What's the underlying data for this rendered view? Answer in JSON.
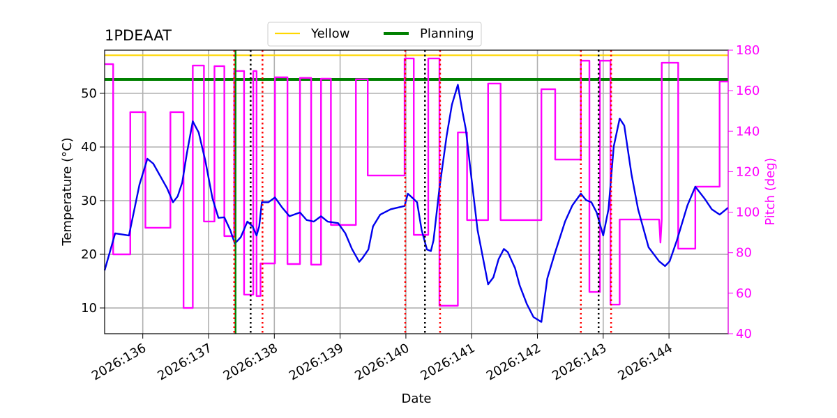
{
  "chart_data": {
    "type": "line",
    "title": "1PDEAAT",
    "xlabel": "Date",
    "ylabel": "Temperature (°C)",
    "y2label": "Pitch (deg)",
    "xlim": [
      135.42,
      144.9
    ],
    "ylim": [
      5.2,
      58.05
    ],
    "y2lim": [
      40,
      180
    ],
    "xticks": [
      {
        "value": 136,
        "label": "2026:136"
      },
      {
        "value": 137,
        "label": "2026:137"
      },
      {
        "value": 138,
        "label": "2026:138"
      },
      {
        "value": 139,
        "label": "2026:139"
      },
      {
        "value": 140,
        "label": "2026:140"
      },
      {
        "value": 141,
        "label": "2026:141"
      },
      {
        "value": 142,
        "label": "2026:142"
      },
      {
        "value": 143,
        "label": "2026:143"
      },
      {
        "value": 144,
        "label": "2026:144"
      }
    ],
    "yticks": [
      10,
      20,
      30,
      40,
      50
    ],
    "y2ticks": [
      40,
      60,
      80,
      100,
      120,
      140,
      160,
      180
    ],
    "y2color": "#ff00ff",
    "grid": true,
    "legend": "upper center",
    "hlines": [
      {
        "name": "Yellow",
        "color": "#ffd700",
        "value": 57.1
      },
      {
        "name": "Planning",
        "color": "#008000",
        "value": 52.6
      }
    ],
    "vlines": [
      {
        "color": "#008000",
        "style": "solid",
        "values": [
          137.41
        ]
      },
      {
        "color": "#ff0000",
        "style": "dotted",
        "values": [
          137.39,
          137.82,
          139.99,
          140.52,
          142.66,
          143.12
        ]
      },
      {
        "color": "#000000",
        "style": "dotted",
        "values": [
          137.64,
          140.29,
          142.93
        ]
      }
    ],
    "series": [
      {
        "color": "#0000ee",
        "x": [
          135.42,
          135.58,
          135.79,
          135.95,
          136.07,
          136.16,
          136.37,
          136.46,
          136.53,
          136.6,
          136.67,
          136.76,
          136.85,
          136.95,
          137.06,
          137.15,
          137.24,
          137.33,
          137.4,
          137.49,
          137.59,
          137.67,
          137.73,
          137.77,
          137.81,
          137.91,
          138.01,
          138.12,
          138.23,
          138.39,
          138.49,
          138.6,
          138.71,
          138.81,
          138.97,
          139.08,
          139.18,
          139.29,
          139.34,
          139.43,
          139.5,
          139.61,
          139.77,
          139.98,
          140.03,
          140.11,
          140.17,
          140.24,
          140.32,
          140.38,
          140.42,
          140.51,
          140.62,
          140.7,
          140.79,
          140.86,
          140.91,
          140.99,
          141.09,
          141.25,
          141.33,
          141.41,
          141.49,
          141.55,
          141.66,
          141.73,
          141.84,
          141.94,
          142.06,
          142.15,
          142.26,
          142.42,
          142.53,
          142.66,
          142.74,
          142.82,
          142.9,
          143.0,
          143.08,
          143.16,
          143.25,
          143.32,
          143.43,
          143.53,
          143.69,
          143.85,
          143.94,
          144.01,
          144.12,
          144.28,
          144.4,
          144.54,
          144.65,
          144.77,
          144.9
        ],
        "values": [
          17.0,
          23.9,
          23.5,
          33.0,
          37.8,
          36.9,
          32.3,
          29.7,
          30.8,
          33.4,
          38.8,
          44.8,
          42.7,
          37.5,
          30.4,
          26.8,
          26.9,
          24.5,
          22.0,
          23.2,
          26.1,
          25.2,
          23.5,
          25.2,
          29.7,
          29.7,
          30.6,
          28.7,
          27.1,
          27.8,
          26.4,
          26.1,
          27.1,
          26.1,
          25.8,
          23.9,
          21.0,
          18.6,
          19.3,
          20.9,
          25.2,
          27.4,
          28.4,
          29.0,
          31.3,
          30.4,
          29.7,
          24.5,
          20.9,
          20.6,
          22.6,
          32.3,
          42.1,
          47.9,
          51.6,
          46.6,
          43.4,
          34.9,
          24.5,
          14.4,
          15.7,
          19.1,
          21.0,
          20.4,
          17.4,
          14.2,
          10.7,
          8.3,
          7.4,
          15.5,
          20.0,
          26.1,
          29.1,
          31.3,
          30.1,
          29.7,
          27.8,
          23.5,
          28.4,
          40.1,
          45.3,
          44.0,
          34.9,
          28.4,
          21.3,
          18.7,
          17.8,
          18.7,
          22.6,
          29.1,
          32.6,
          30.4,
          28.4,
          27.4,
          28.7
        ]
      },
      {
        "color": "#ff00ff",
        "axis": "y2",
        "x": [
          135.42,
          135.55,
          135.55,
          135.81,
          135.81,
          136.04,
          136.04,
          136.42,
          136.42,
          136.62,
          136.62,
          136.76,
          136.76,
          136.93,
          136.93,
          137.09,
          137.09,
          137.24,
          137.24,
          137.39,
          137.39,
          137.54,
          137.54,
          137.68,
          137.68,
          137.73,
          137.73,
          137.79,
          137.79,
          138.01,
          138.01,
          138.2,
          138.2,
          138.39,
          138.39,
          138.56,
          138.56,
          138.71,
          138.71,
          138.86,
          138.86,
          139.24,
          139.24,
          139.42,
          139.42,
          139.98,
          139.98,
          140.12,
          140.12,
          140.34,
          140.34,
          140.51,
          140.51,
          140.79,
          140.79,
          140.93,
          140.93,
          141.25,
          141.25,
          141.44,
          141.44,
          142.06,
          142.06,
          142.27,
          142.27,
          142.66,
          142.66,
          142.79,
          142.79,
          142.95,
          142.95,
          143.11,
          143.11,
          143.25,
          143.25,
          143.85,
          143.87,
          143.89,
          143.89,
          144.14,
          144.14,
          144.4,
          144.4,
          144.77,
          144.77,
          144.9
        ],
        "values": [
          173.1,
          173.1,
          79.2,
          79.2,
          149.4,
          149.4,
          92.3,
          92.3,
          149.4,
          149.4,
          52.7,
          52.7,
          172.4,
          172.4,
          95.4,
          95.4,
          172.1,
          172.1,
          88.2,
          88.2,
          169.7,
          169.7,
          59.3,
          59.3,
          169.7,
          169.7,
          58.6,
          58.6,
          74.7,
          74.7,
          166.6,
          166.6,
          74.4,
          74.4,
          166.3,
          166.3,
          74.1,
          74.1,
          165.9,
          165.9,
          93.7,
          93.7,
          165.6,
          165.6,
          118.1,
          118.1,
          175.9,
          175.9,
          88.8,
          88.8,
          175.9,
          175.9,
          53.8,
          53.8,
          139.4,
          139.4,
          96.1,
          96.1,
          163.5,
          163.5,
          96.1,
          96.1,
          160.7,
          160.7,
          126.0,
          126.0,
          174.8,
          174.8,
          60.6,
          60.6,
          174.8,
          174.8,
          54.4,
          54.4,
          96.4,
          96.4,
          85.0,
          96.4,
          173.8,
          173.8,
          82.0,
          82.0,
          112.6,
          112.6,
          164.5,
          164.5
        ]
      }
    ]
  }
}
